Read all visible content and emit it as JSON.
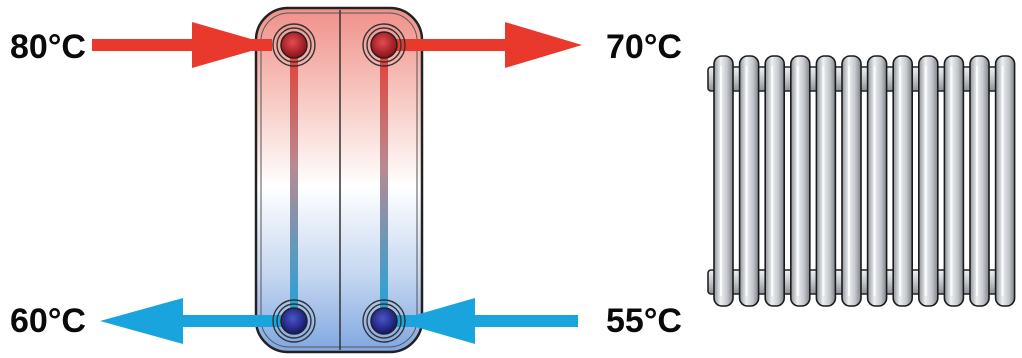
{
  "labels": {
    "primary_supply": "80°C",
    "secondary_supply": "70°C",
    "primary_return": "60°C",
    "secondary_return": "55°C"
  },
  "colors": {
    "hot": "#e8392c",
    "cold": "#1aa4de",
    "port_hot": "#b5121b",
    "port_cold": "#22238f",
    "radiator": "#c9ccd0",
    "outline": "#333333"
  },
  "radiator": {
    "columns": 12
  }
}
